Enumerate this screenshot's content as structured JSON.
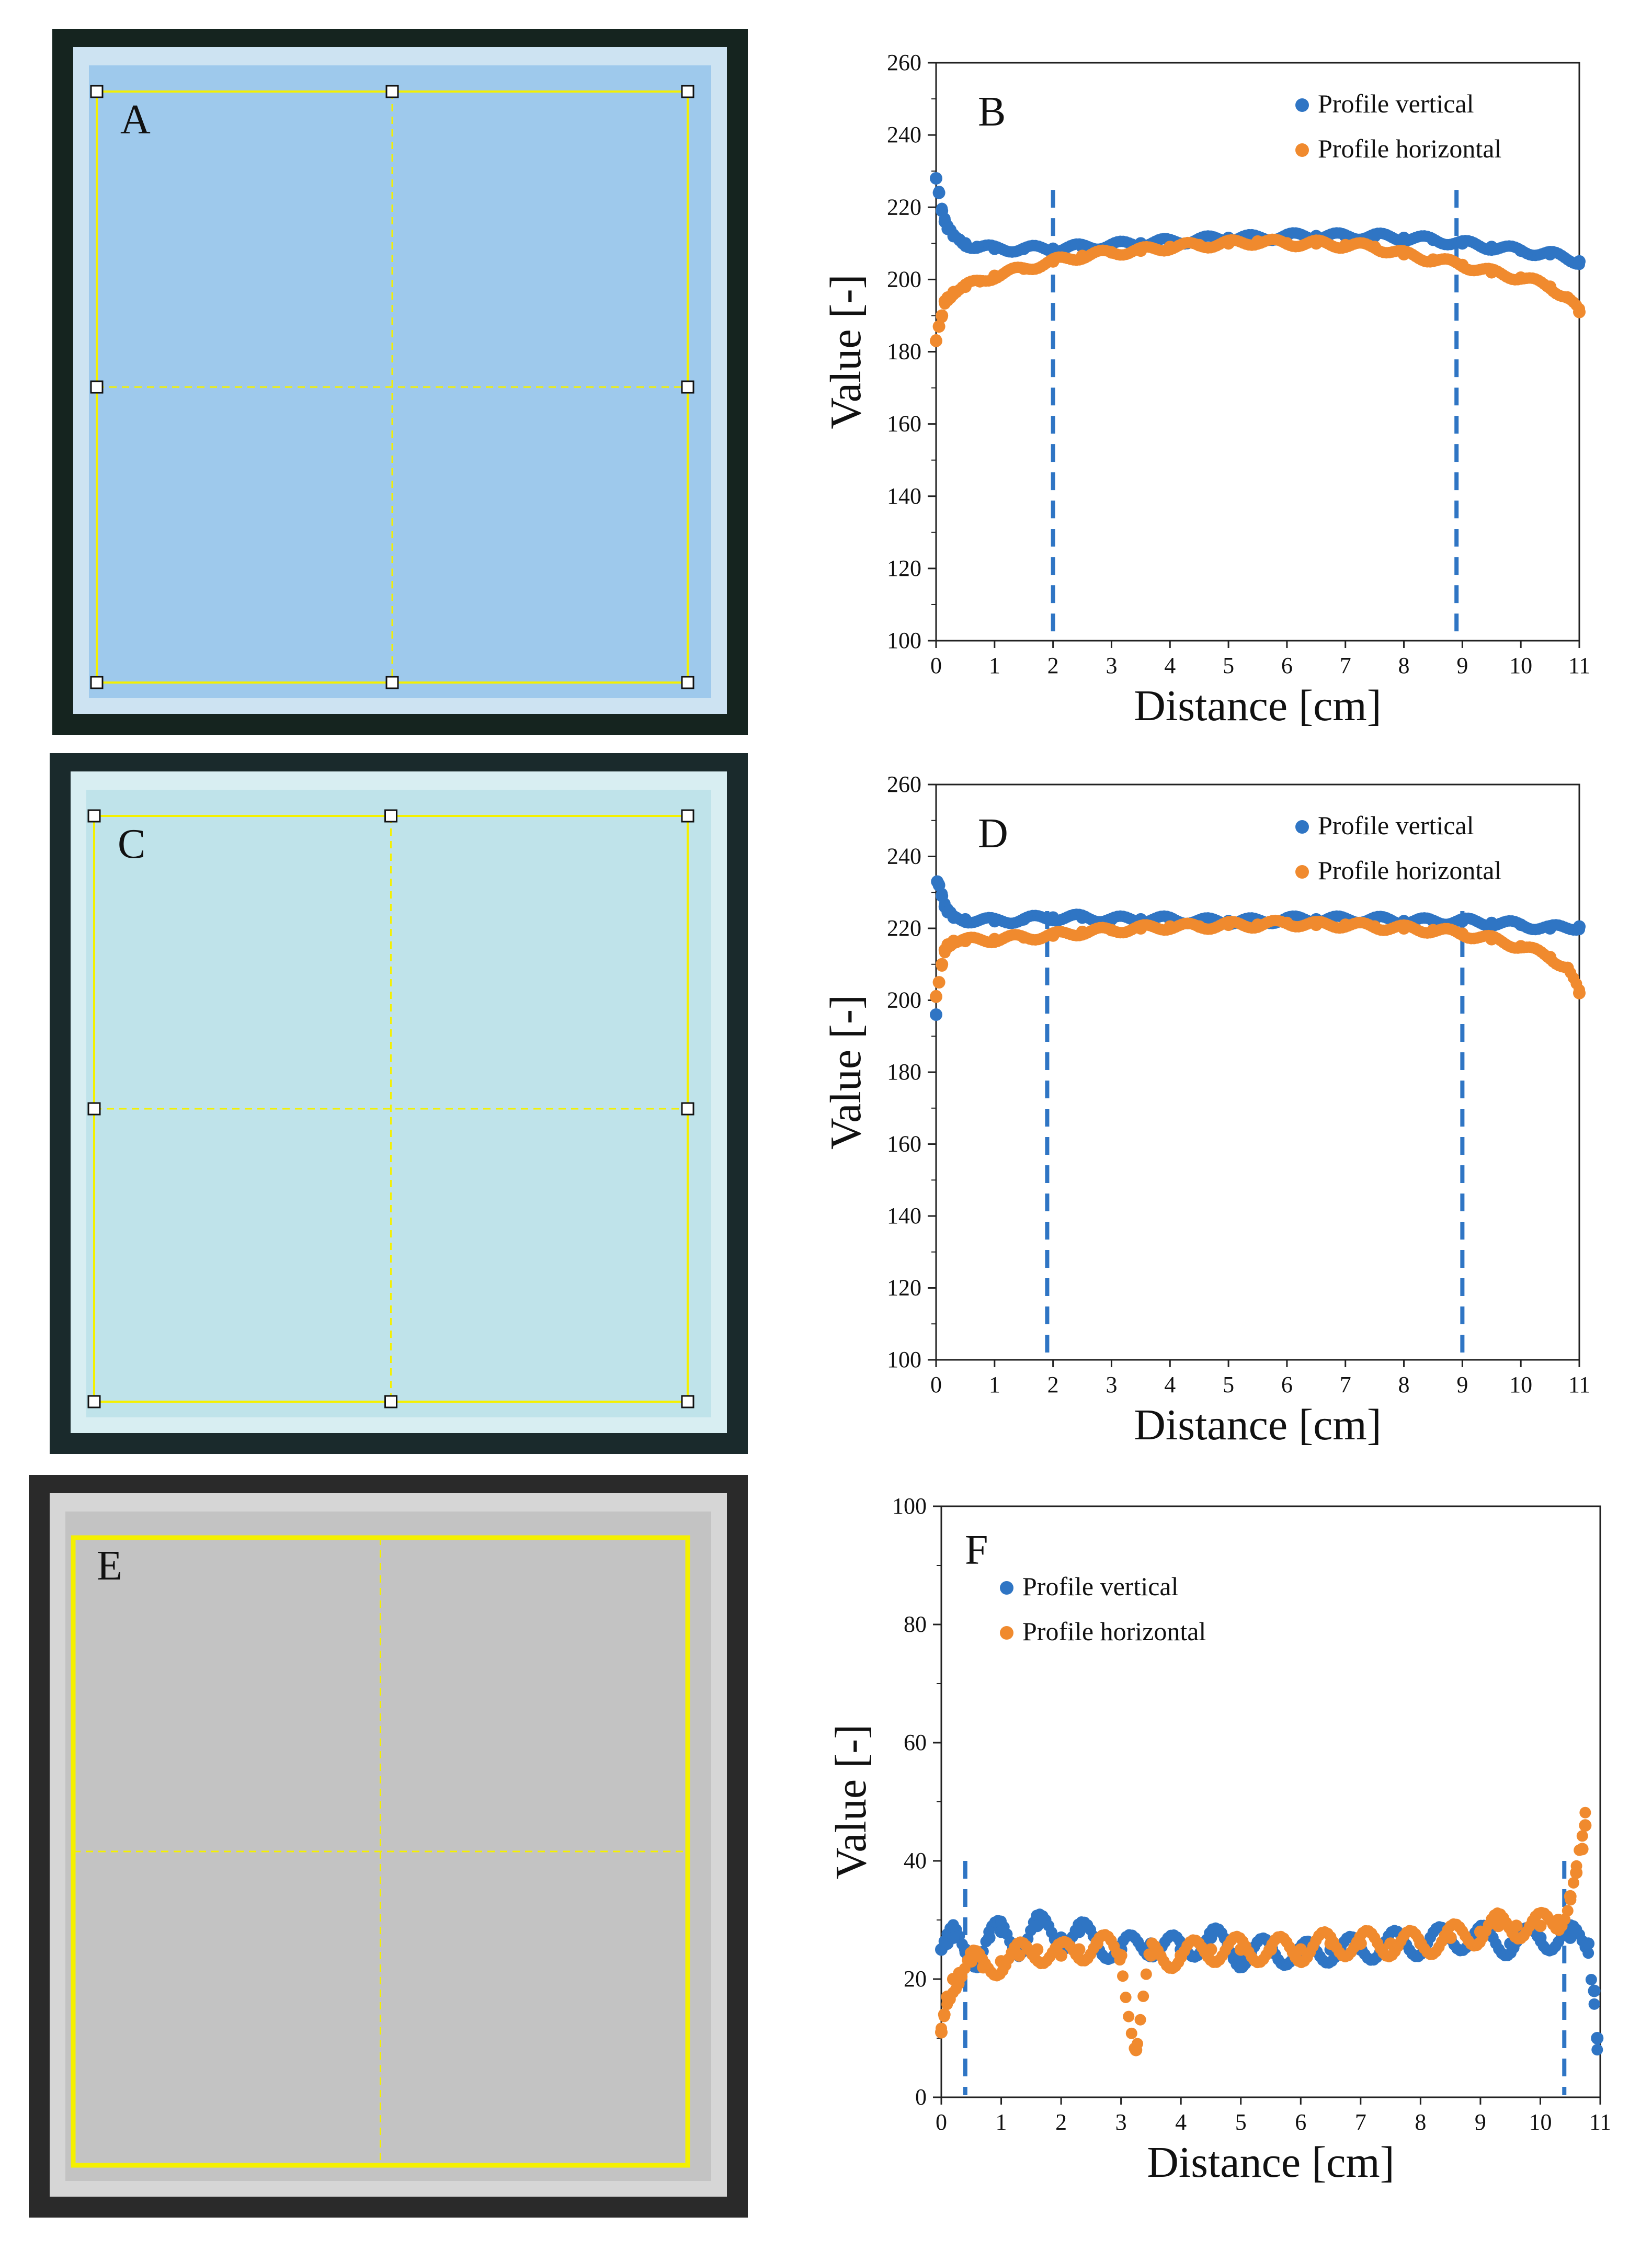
{
  "photos": [
    {
      "label": "A",
      "plate_color": "#9ec9ec",
      "frame_color": "#cde3f2",
      "bg_color": "#15241f",
      "guide_color": "#f4f000",
      "style": "handles"
    },
    {
      "label": "C",
      "plate_color": "#bfe3ea",
      "frame_color": "#d8eef2",
      "bg_color": "#1a2a2c",
      "guide_color": "#f4f000",
      "style": "handles"
    },
    {
      "label": "E",
      "plate_color": "#c3c3c3",
      "frame_color": "#d6d6d6",
      "bg_color": "#2a2a2a",
      "guide_color": "#f4f000",
      "style": "box"
    }
  ],
  "chart_data": [
    {
      "panel": "B",
      "type": "scatter",
      "xlabel": "Distance [cm]",
      "ylabel": "Value [-]",
      "xlim": [
        0,
        11
      ],
      "ylim": [
        100,
        260
      ],
      "xticks": [
        0,
        1,
        2,
        3,
        4,
        5,
        6,
        7,
        8,
        9,
        10,
        11
      ],
      "yticks": [
        100,
        120,
        140,
        160,
        180,
        200,
        220,
        240,
        260
      ],
      "legend": [
        "Profile vertical",
        "Profile horizontal"
      ],
      "legend_position": "top-right",
      "cutoff_lines": [
        2.0,
        8.9
      ],
      "series": [
        {
          "name": "Profile vertical",
          "color": "#2f75c4",
          "x": [
            0.0,
            0.05,
            0.1,
            0.15,
            0.2,
            0.3,
            0.4,
            0.5,
            0.7,
            1.0,
            1.5,
            2.0,
            2.5,
            3.0,
            3.5,
            4.0,
            4.5,
            5.0,
            5.5,
            6.0,
            6.5,
            7.0,
            7.5,
            8.0,
            8.5,
            9.0,
            9.5,
            10.0,
            10.5,
            11.0
          ],
          "y": [
            228,
            224,
            219,
            216,
            214,
            212,
            211,
            210,
            209,
            208.5,
            208.5,
            208.5,
            209,
            209.5,
            210,
            210.5,
            211,
            211.5,
            211.5,
            212,
            212,
            212,
            212,
            211.5,
            211,
            210,
            209,
            208,
            207,
            205
          ]
        },
        {
          "name": "Profile horizontal",
          "color": "#f08a2e",
          "x": [
            0.0,
            0.05,
            0.1,
            0.15,
            0.2,
            0.3,
            0.5,
            0.75,
            1.0,
            1.5,
            2.0,
            2.5,
            3.0,
            3.5,
            4.0,
            4.5,
            5.0,
            5.5,
            6.0,
            6.5,
            7.0,
            7.5,
            8.0,
            8.5,
            9.0,
            9.5,
            10.0,
            10.5,
            10.8,
            11.0
          ],
          "y": [
            183,
            187,
            190,
            194,
            195,
            196.5,
            198,
            199.5,
            201,
            203,
            205,
            206.5,
            207.5,
            208,
            209,
            209.5,
            210,
            210.5,
            210,
            210,
            209.5,
            209,
            207,
            205.5,
            204,
            202,
            200.5,
            198,
            195,
            191
          ]
        }
      ]
    },
    {
      "panel": "D",
      "type": "scatter",
      "xlabel": "Distance [cm]",
      "ylabel": "Value [-]",
      "xlim": [
        0,
        11
      ],
      "ylim": [
        100,
        260
      ],
      "xticks": [
        0,
        1,
        2,
        3,
        4,
        5,
        6,
        7,
        8,
        9,
        10,
        11
      ],
      "yticks": [
        100,
        120,
        140,
        160,
        180,
        200,
        220,
        240,
        260
      ],
      "legend": [
        "Profile vertical",
        "Profile horizontal"
      ],
      "legend_position": "top-right",
      "cutoff_lines": [
        1.9,
        9.0
      ],
      "series": [
        {
          "name": "Profile vertical",
          "color": "#2f75c4",
          "x": [
            0.0,
            0.02,
            0.05,
            0.1,
            0.15,
            0.2,
            0.3,
            0.5,
            1.0,
            1.5,
            2.0,
            2.5,
            3.0,
            3.5,
            4.0,
            4.5,
            5.0,
            5.5,
            6.0,
            6.5,
            7.0,
            7.5,
            8.0,
            8.5,
            9.0,
            9.5,
            10.0,
            10.5,
            11.0
          ],
          "y": [
            196,
            233,
            232,
            229,
            226,
            224.5,
            223,
            222.5,
            222,
            222.5,
            223,
            223,
            222.5,
            222.5,
            222.5,
            222,
            222,
            222,
            222.5,
            222.5,
            222.5,
            222.5,
            222,
            222,
            222,
            221.5,
            221,
            220,
            220.5
          ]
        },
        {
          "name": "Profile horizontal",
          "color": "#f08a2e",
          "x": [
            0.0,
            0.05,
            0.1,
            0.15,
            0.2,
            0.3,
            0.5,
            1.0,
            1.5,
            2.0,
            2.5,
            3.0,
            3.5,
            4.0,
            4.5,
            5.0,
            5.5,
            6.0,
            6.5,
            7.0,
            7.5,
            8.0,
            8.5,
            9.0,
            9.5,
            10.0,
            10.5,
            10.8,
            11.0
          ],
          "y": [
            201,
            205,
            210,
            214,
            215.5,
            216.5,
            216.5,
            217,
            217.5,
            218,
            219,
            219.5,
            220,
            220.5,
            220.5,
            221,
            221,
            221.5,
            221,
            221,
            220.5,
            220,
            219.5,
            218.5,
            217,
            215,
            212,
            209,
            202
          ]
        }
      ]
    },
    {
      "panel": "F",
      "type": "scatter",
      "xlabel": "Distance [cm]",
      "ylabel": "Value [-]",
      "xlim": [
        0,
        11
      ],
      "ylim": [
        0,
        100
      ],
      "xticks": [
        0,
        1,
        2,
        3,
        4,
        5,
        6,
        7,
        8,
        9,
        10,
        11
      ],
      "yticks": [
        0,
        20,
        40,
        60,
        80,
        100
      ],
      "legend": [
        "Profile vertical",
        "Profile horizontal"
      ],
      "legend_position": "top-left",
      "cutoff_lines": [
        0.4,
        10.4
      ],
      "series": [
        {
          "name": "Profile vertical",
          "color": "#2f75c4",
          "x": [
            0.0,
            0.1,
            0.2,
            0.4,
            0.6,
            0.8,
            1.0,
            1.3,
            1.6,
            2.0,
            2.3,
            2.6,
            3.0,
            3.5,
            4.0,
            4.5,
            5.0,
            5.5,
            6.0,
            6.5,
            7.0,
            7.5,
            8.0,
            8.5,
            9.0,
            9.5,
            10.0,
            10.5,
            10.8,
            10.9,
            10.95
          ],
          "y": [
            25,
            26,
            27,
            25,
            24,
            27,
            28,
            26,
            29,
            27,
            28,
            26,
            25,
            26,
            25,
            27,
            24,
            25,
            24,
            25,
            25,
            26,
            26,
            27,
            27,
            26,
            27,
            27,
            26,
            18,
            10
          ]
        },
        {
          "name": "Profile horizontal",
          "color": "#f08a2e",
          "x": [
            0.0,
            0.05,
            0.1,
            0.2,
            0.3,
            0.5,
            0.7,
            1.0,
            1.3,
            1.6,
            2.0,
            2.3,
            2.6,
            3.0,
            3.25,
            3.5,
            4.0,
            4.5,
            5.0,
            5.5,
            6.0,
            6.5,
            7.0,
            7.5,
            8.0,
            8.5,
            9.0,
            9.3,
            9.6,
            10.0,
            10.3,
            10.5,
            10.6,
            10.7,
            10.75
          ],
          "y": [
            11,
            14,
            17,
            20,
            21,
            23,
            22,
            23,
            24,
            25,
            24,
            25,
            26,
            24,
            8,
            24,
            24,
            25,
            25,
            25,
            25,
            26,
            26,
            26,
            26,
            27,
            28,
            29,
            29,
            29,
            30,
            34,
            38,
            42,
            46
          ]
        }
      ]
    }
  ]
}
